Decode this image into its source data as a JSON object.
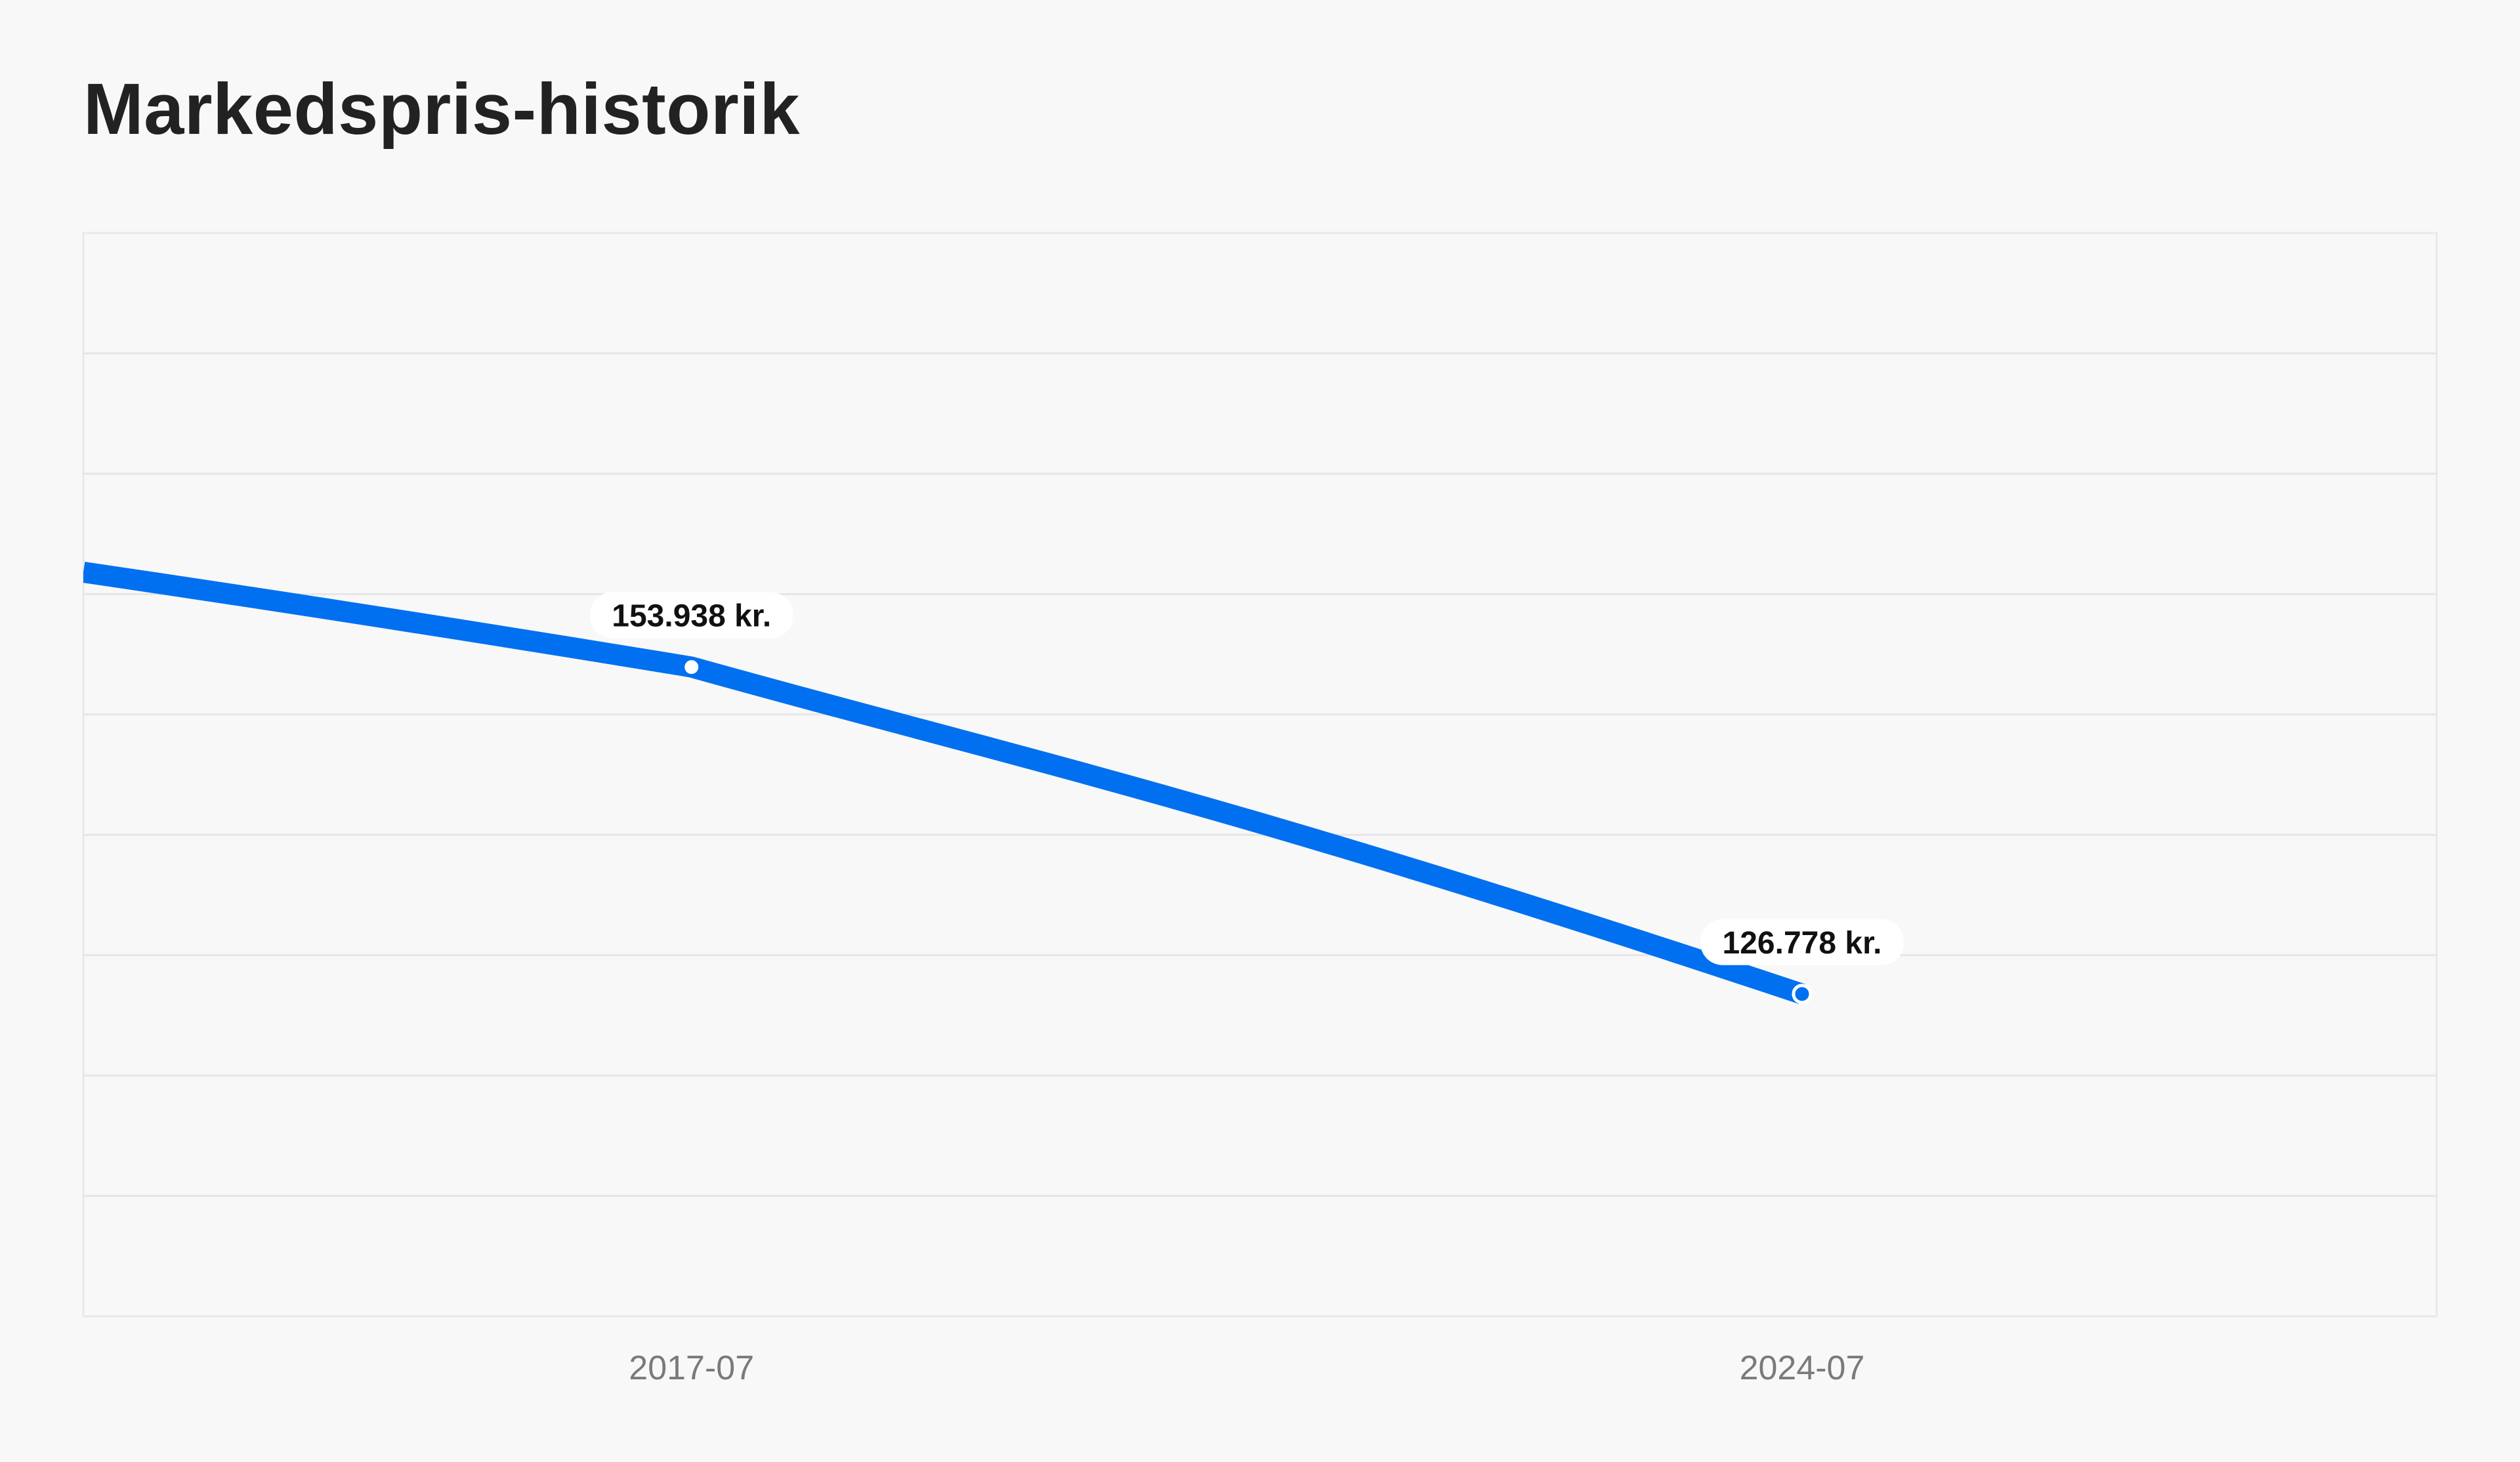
{
  "page": {
    "title": "Markedspris-historik"
  },
  "colors": {
    "accent": "#0070f0",
    "grid": "#e6e6e6",
    "background": "#f8f8f8"
  },
  "chart_data": {
    "type": "line",
    "title": "Markedspris-historik",
    "xlabel": "",
    "ylabel": "",
    "x": [
      "2017-07",
      "2024-07"
    ],
    "x_ticks": [
      "2017-07",
      "2024-07"
    ],
    "series": [
      {
        "values": [
          153938,
          126778
        ],
        "labels": [
          "153.938 kr.",
          "126.778 kr."
        ],
        "color": "#0070f0"
      }
    ],
    "xlim": [
      "2013-09",
      "2028-07"
    ],
    "ylim": [
      100000,
      190000
    ],
    "grid": true,
    "legend": "none"
  }
}
